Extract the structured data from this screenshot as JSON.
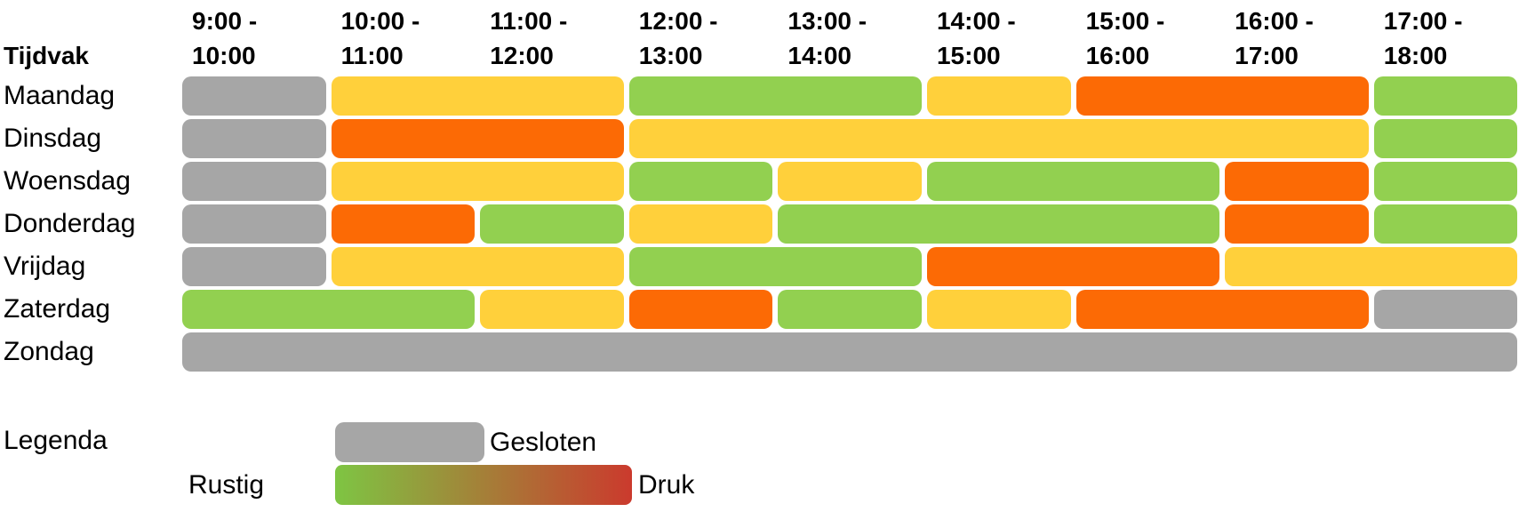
{
  "colors": {
    "gesloten": "#A6A6A6",
    "rustig": "#92D050",
    "matig": "#FFD03B",
    "druk": "#FC6A05",
    "gradient_start": "#7EC543",
    "gradient_end": "#CB3A2D",
    "text": "#000000",
    "background": "#FFFFFF"
  },
  "header": {
    "row_label": "Tijdvak",
    "columns": [
      {
        "line1": "9:00 -",
        "line2": "10:00"
      },
      {
        "line1": "10:00 -",
        "line2": "11:00"
      },
      {
        "line1": "11:00 -",
        "line2": "12:00"
      },
      {
        "line1": "12:00 -",
        "line2": "13:00"
      },
      {
        "line1": "13:00 -",
        "line2": "14:00"
      },
      {
        "line1": "14:00 -",
        "line2": "15:00"
      },
      {
        "line1": "15:00 -",
        "line2": "16:00"
      },
      {
        "line1": "16:00 -",
        "line2": "17:00"
      },
      {
        "line1": "17:00 -",
        "line2": "18:00"
      }
    ]
  },
  "rows": [
    {
      "label": "Maandag",
      "segments": [
        {
          "span": 1,
          "level": "gesloten"
        },
        {
          "span": 2,
          "level": "matig"
        },
        {
          "span": 2,
          "level": "rustig"
        },
        {
          "span": 1,
          "level": "matig"
        },
        {
          "span": 2,
          "level": "druk"
        },
        {
          "span": 1,
          "level": "rustig"
        }
      ]
    },
    {
      "label": "Dinsdag",
      "segments": [
        {
          "span": 1,
          "level": "gesloten"
        },
        {
          "span": 2,
          "level": "druk"
        },
        {
          "span": 5,
          "level": "matig"
        },
        {
          "span": 1,
          "level": "rustig"
        }
      ]
    },
    {
      "label": "Woensdag",
      "segments": [
        {
          "span": 1,
          "level": "gesloten"
        },
        {
          "span": 2,
          "level": "matig"
        },
        {
          "span": 1,
          "level": "rustig"
        },
        {
          "span": 1,
          "level": "matig"
        },
        {
          "span": 2,
          "level": "rustig"
        },
        {
          "span": 1,
          "level": "druk"
        },
        {
          "span": 1,
          "level": "rustig"
        }
      ]
    },
    {
      "label": "Donderdag",
      "segments": [
        {
          "span": 1,
          "level": "gesloten"
        },
        {
          "span": 1,
          "level": "druk"
        },
        {
          "span": 1,
          "level": "rustig"
        },
        {
          "span": 1,
          "level": "matig"
        },
        {
          "span": 3,
          "level": "rustig"
        },
        {
          "span": 1,
          "level": "druk"
        },
        {
          "span": 1,
          "level": "rustig"
        }
      ]
    },
    {
      "label": "Vrijdag",
      "segments": [
        {
          "span": 1,
          "level": "gesloten"
        },
        {
          "span": 2,
          "level": "matig"
        },
        {
          "span": 2,
          "level": "rustig"
        },
        {
          "span": 2,
          "level": "druk"
        },
        {
          "span": 2,
          "level": "matig"
        }
      ]
    },
    {
      "label": "Zaterdag",
      "segments": [
        {
          "span": 2,
          "level": "rustig"
        },
        {
          "span": 1,
          "level": "matig"
        },
        {
          "span": 1,
          "level": "druk"
        },
        {
          "span": 1,
          "level": "rustig"
        },
        {
          "span": 1,
          "level": "matig"
        },
        {
          "span": 2,
          "level": "druk"
        },
        {
          "span": 1,
          "level": "gesloten"
        }
      ]
    },
    {
      "label": "Zondag",
      "segments": [
        {
          "span": 9,
          "level": "gesloten"
        }
      ]
    }
  ],
  "legend": {
    "title": "Legenda",
    "closed_label": "Gesloten",
    "quiet_label": "Rustig",
    "busy_label": "Druk"
  },
  "chart_data": {
    "type": "heatmap",
    "title": "",
    "xlabel": "Tijdvak",
    "x_categories": [
      "9:00 - 10:00",
      "10:00 - 11:00",
      "11:00 - 12:00",
      "12:00 - 13:00",
      "13:00 - 14:00",
      "14:00 - 15:00",
      "15:00 - 16:00",
      "16:00 - 17:00",
      "17:00 - 18:00"
    ],
    "y_categories": [
      "Maandag",
      "Dinsdag",
      "Woensdag",
      "Donderdag",
      "Vrijdag",
      "Zaterdag",
      "Zondag"
    ],
    "values": [
      [
        "gesloten",
        "matig",
        "matig",
        "rustig",
        "rustig",
        "matig",
        "druk",
        "druk",
        "rustig"
      ],
      [
        "gesloten",
        "druk",
        "druk",
        "matig",
        "matig",
        "matig",
        "matig",
        "matig",
        "rustig"
      ],
      [
        "gesloten",
        "matig",
        "matig",
        "rustig",
        "matig",
        "rustig",
        "rustig",
        "druk",
        "rustig"
      ],
      [
        "gesloten",
        "druk",
        "rustig",
        "matig",
        "rustig",
        "rustig",
        "rustig",
        "druk",
        "rustig"
      ],
      [
        "gesloten",
        "matig",
        "matig",
        "rustig",
        "rustig",
        "druk",
        "druk",
        "matig",
        "matig"
      ],
      [
        "rustig",
        "rustig",
        "matig",
        "druk",
        "rustig",
        "matig",
        "druk",
        "druk",
        "gesloten"
      ],
      [
        "gesloten",
        "gesloten",
        "gesloten",
        "gesloten",
        "gesloten",
        "gesloten",
        "gesloten",
        "gesloten",
        "gesloten"
      ]
    ],
    "level_colors": {
      "gesloten": "#A6A6A6",
      "rustig": "#92D050",
      "matig": "#FFD03B",
      "druk": "#FC6A05"
    },
    "scale": {
      "low_label": "Rustig",
      "high_label": "Druk",
      "closed_label": "Gesloten"
    },
    "legend_position": "bottom-left",
    "grid": false
  }
}
